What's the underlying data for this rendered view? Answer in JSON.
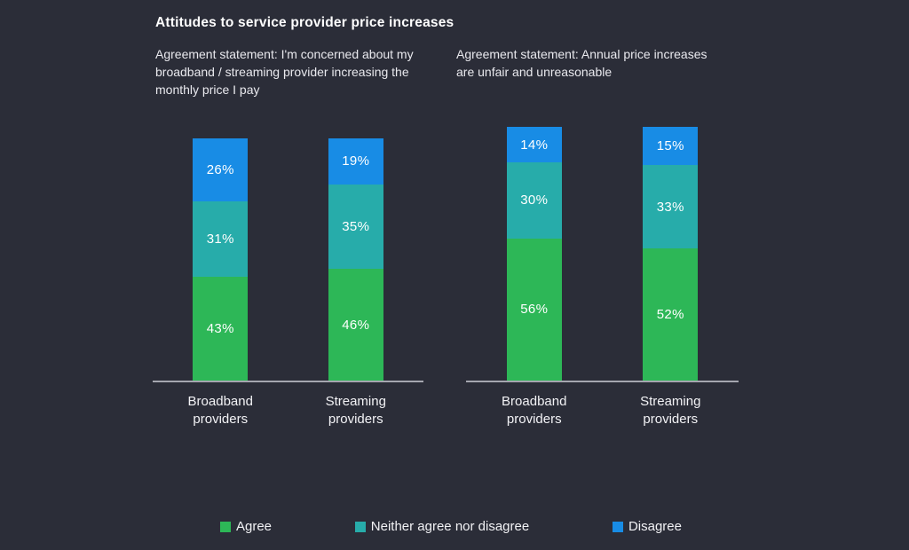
{
  "page": {
    "title": "Attitudes to service provider price increases",
    "background_color": "#2b2d38"
  },
  "legend": {
    "items": [
      {
        "label": "Agree",
        "color": "#2DB757"
      },
      {
        "label": "Neither agree nor disagree",
        "color": "#27ACAA"
      },
      {
        "label": "Disagree",
        "color": "#188CE5"
      }
    ]
  },
  "chart_data": [
    {
      "type": "bar",
      "stacked": true,
      "units": "percent",
      "title": "Agreement statement: I'm concerned about my broadband / streaming provider increasing the monthly price I pay",
      "categories": [
        "Broadband providers",
        "Streaming providers"
      ],
      "series": [
        {
          "name": "Agree",
          "color": "#2DB757",
          "values": [
            43,
            46
          ]
        },
        {
          "name": "Neither agree nor disagree",
          "color": "#27ACAA",
          "values": [
            31,
            35
          ]
        },
        {
          "name": "Disagree",
          "color": "#188CE5",
          "values": [
            26,
            19
          ]
        }
      ],
      "value_suffix": "%",
      "ylim": [
        0,
        100
      ],
      "grid": false,
      "legend_position": "bottom"
    },
    {
      "type": "bar",
      "stacked": true,
      "units": "percent",
      "title": "Agreement statement: Annual price increases are unfair and unreasonable",
      "categories": [
        "Broadband providers",
        "Streaming providers"
      ],
      "series": [
        {
          "name": "Agree",
          "color": "#2DB757",
          "values": [
            56,
            52
          ]
        },
        {
          "name": "Neither agree nor disagree",
          "color": "#27ACAA",
          "values": [
            30,
            33
          ]
        },
        {
          "name": "Disagree",
          "color": "#188CE5",
          "values": [
            14,
            15
          ]
        }
      ],
      "value_suffix": "%",
      "ylim": [
        0,
        100
      ],
      "grid": false,
      "legend_position": "bottom"
    }
  ]
}
